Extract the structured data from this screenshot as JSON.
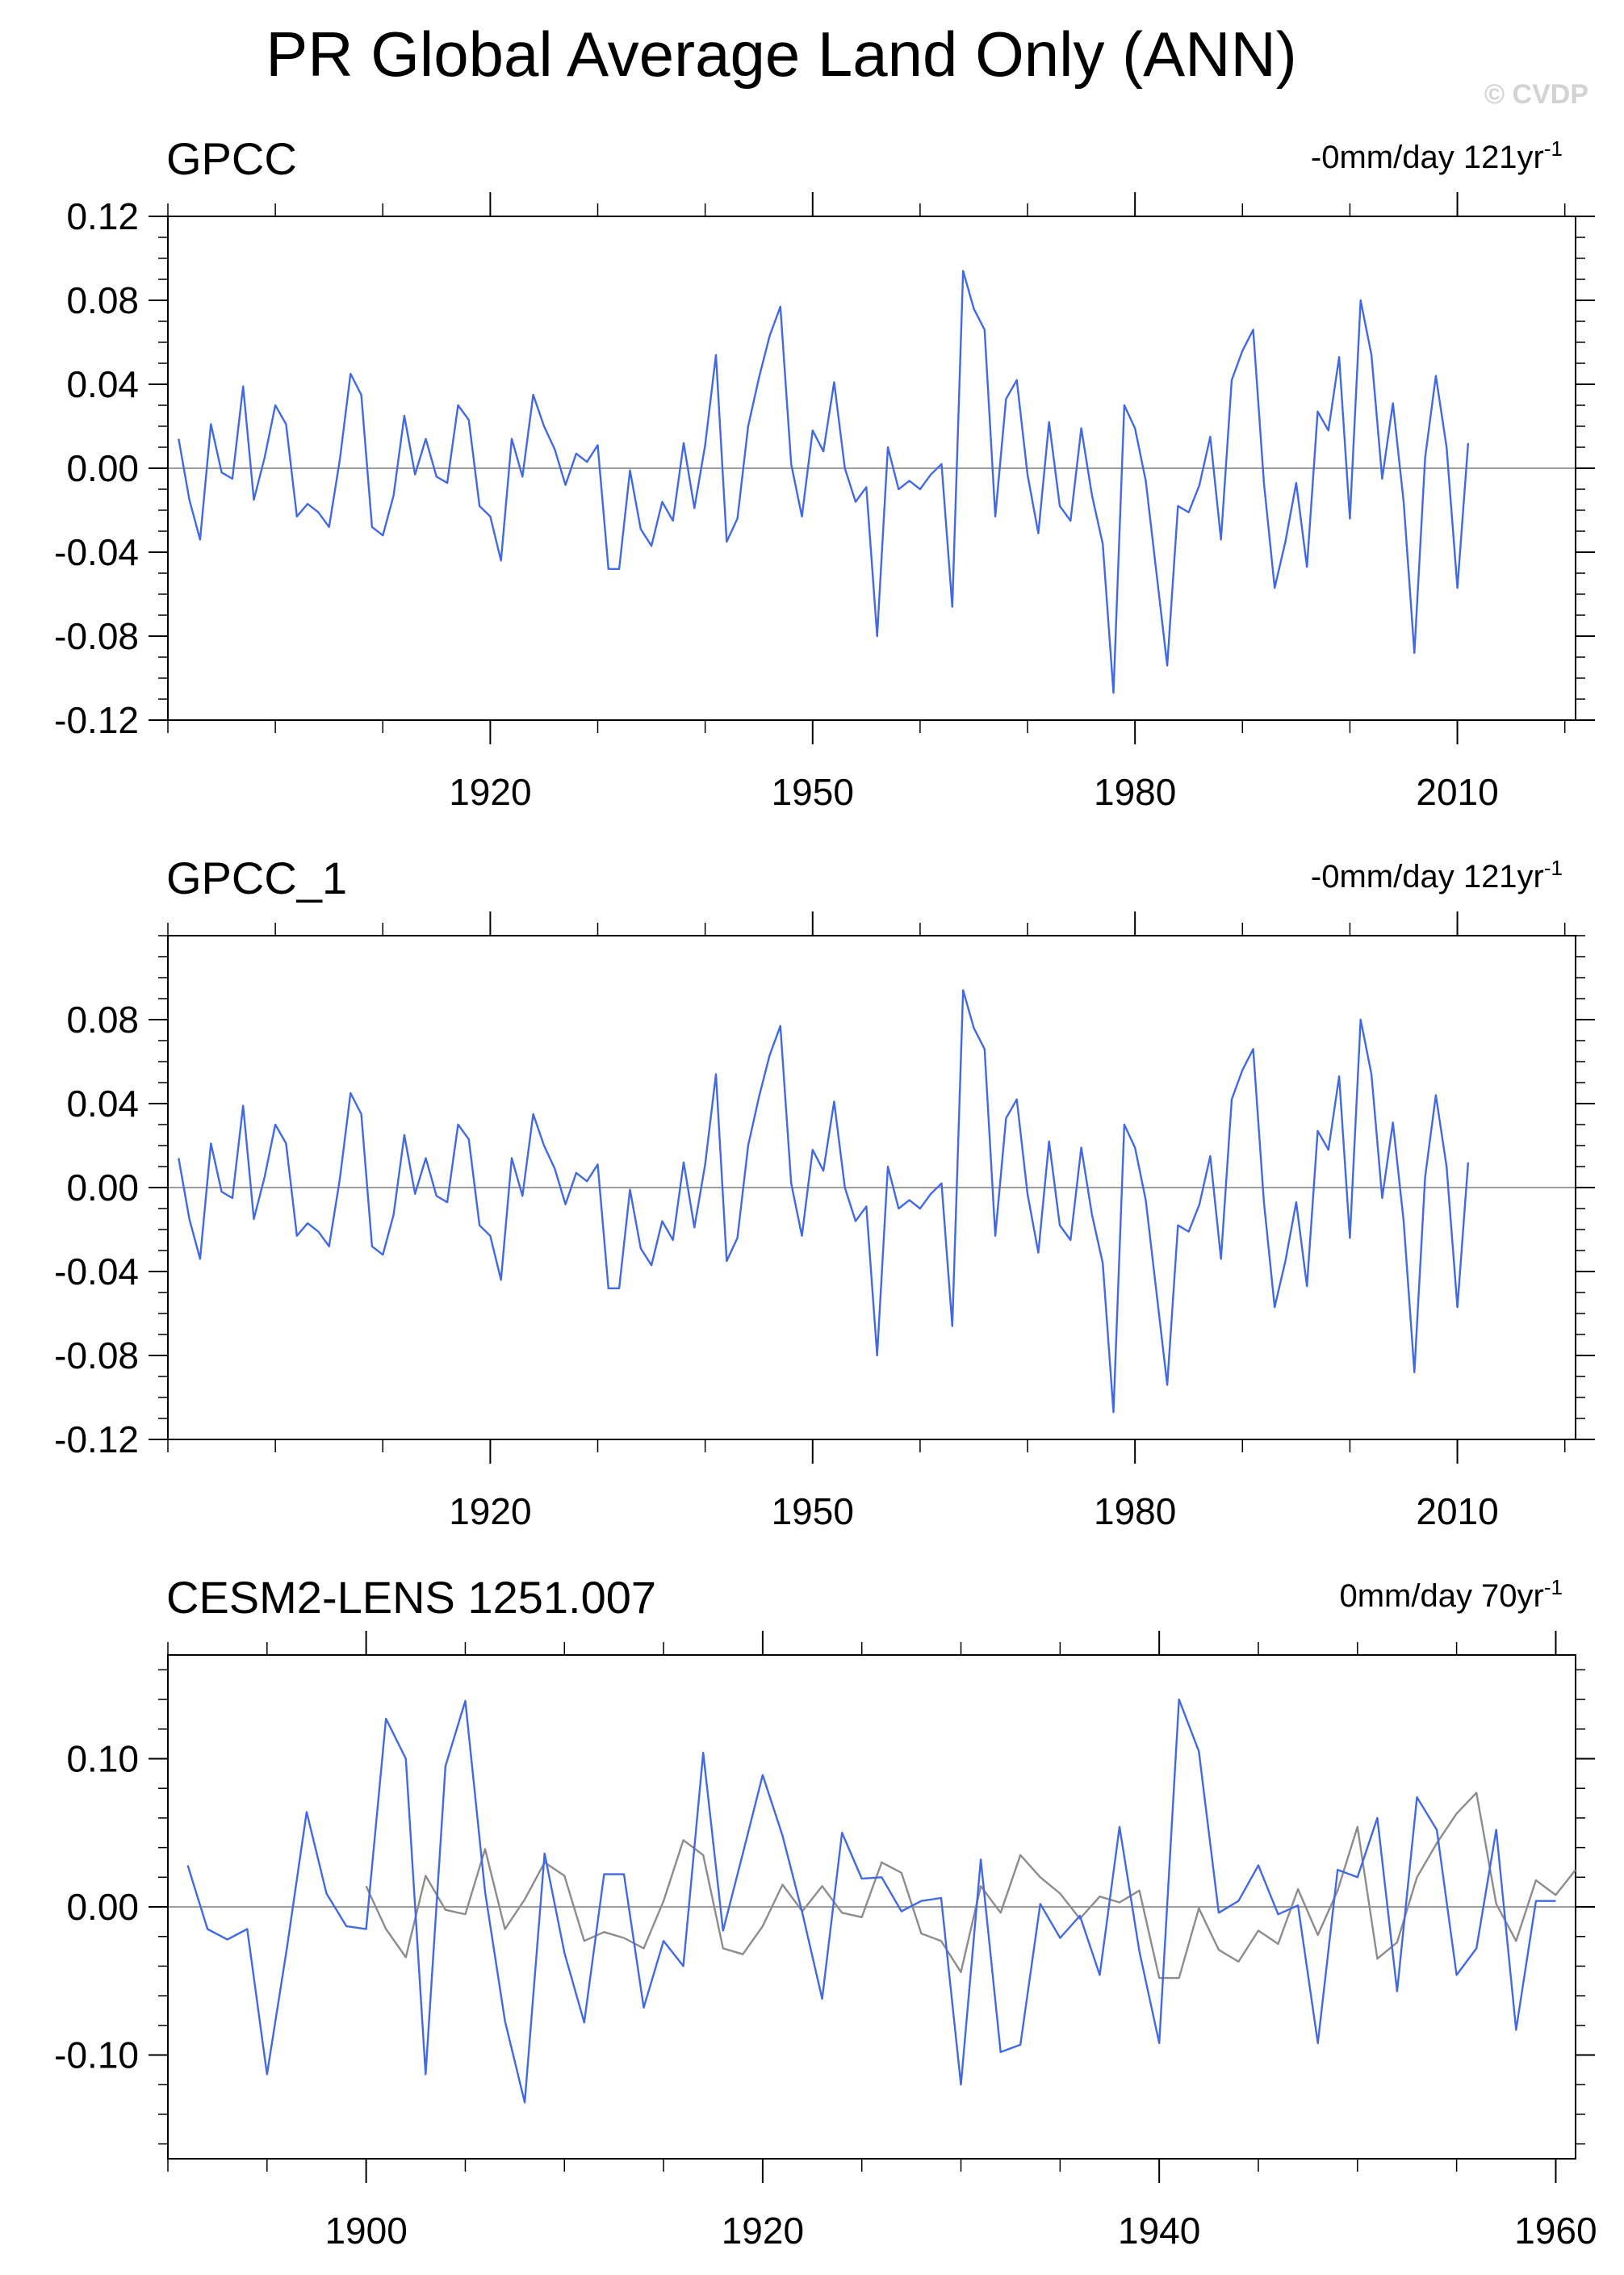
{
  "figure": {
    "title": "PR Global Average Land Only (ANN)",
    "copyright": "© CVDP"
  },
  "colors": {
    "primary": "#4169e1",
    "secondary": "#8c8c8c"
  },
  "chart_data": [
    {
      "type": "line",
      "title": "GPCC",
      "trend_label": "-0mm/day 121yr",
      "trend_sup": "-1",
      "xlim": [
        1890,
        2021
      ],
      "ylim": [
        -0.12,
        0.12
      ],
      "yticks": [
        -0.12,
        -0.08,
        -0.04,
        0.0,
        0.04,
        0.08,
        0.12
      ],
      "ytick_labels": [
        "-0.12",
        "-0.08",
        "-0.04",
        "0.00",
        "0.04",
        "0.08",
        "0.12"
      ],
      "xticks": [
        1920,
        1950,
        1980,
        2010
      ],
      "xtick_labels": [
        "1920",
        "1950",
        "1980",
        "2010"
      ],
      "series": [
        {
          "start": 1891,
          "values": [
            0.014,
            -0.015,
            -0.034,
            0.021,
            -0.002,
            -0.005,
            0.039,
            -0.015,
            0.005,
            0.03,
            0.021,
            -0.023,
            -0.017,
            -0.021,
            -0.028,
            0.004,
            0.045,
            0.035,
            -0.028,
            -0.032,
            -0.013,
            0.025,
            -0.003,
            0.014,
            -0.004,
            -0.007,
            0.03,
            0.023,
            -0.018,
            -0.023,
            -0.044,
            0.014,
            -0.004,
            0.035,
            0.02,
            0.009,
            -0.008,
            0.007,
            0.003,
            0.011,
            -0.048,
            -0.048,
            -0.001,
            -0.029,
            -0.037,
            -0.016,
            -0.025,
            0.012,
            -0.019,
            0.011,
            0.054,
            -0.035,
            -0.024,
            0.02,
            0.043,
            0.063,
            0.077,
            0.002,
            -0.023,
            0.018,
            0.008,
            0.041,
            0.0,
            -0.016,
            -0.009,
            -0.08,
            0.01,
            -0.01,
            -0.006,
            -0.01,
            -0.003,
            0.002,
            -0.066,
            0.094,
            0.076,
            0.066,
            -0.023,
            0.033,
            0.042,
            -0.003,
            -0.031,
            0.022,
            -0.018,
            -0.025,
            0.019,
            -0.013,
            -0.036,
            -0.107,
            0.03,
            0.019,
            -0.006,
            -0.05,
            -0.094,
            -0.018,
            -0.021,
            -0.008,
            0.015,
            -0.034,
            0.042,
            0.056,
            0.066,
            -0.007,
            -0.057,
            -0.035,
            -0.007,
            -0.047,
            0.027,
            0.018,
            0.053,
            -0.024,
            0.08,
            0.054,
            -0.005,
            0.031,
            -0.016,
            -0.088,
            0.005,
            0.044,
            0.01,
            -0.057,
            0.012
          ]
        }
      ]
    },
    {
      "type": "line",
      "title": "GPCC_1",
      "trend_label": "-0mm/day 121yr",
      "trend_sup": "-1",
      "xlim": [
        1890,
        2021
      ],
      "ylim": [
        -0.12,
        0.12
      ],
      "yticks": [
        -0.12,
        -0.08,
        -0.04,
        0.0,
        0.04,
        0.08
      ],
      "ytick_labels": [
        "-0.12",
        "-0.08",
        "-0.04",
        "0.00",
        "0.04",
        "0.08"
      ],
      "xticks": [
        1920,
        1950,
        1980,
        2010
      ],
      "xtick_labels": [
        "1920",
        "1950",
        "1980",
        "2010"
      ],
      "series": [
        {
          "start": 1891,
          "values": [
            0.014,
            -0.015,
            -0.034,
            0.021,
            -0.002,
            -0.005,
            0.039,
            -0.015,
            0.005,
            0.03,
            0.021,
            -0.023,
            -0.017,
            -0.021,
            -0.028,
            0.004,
            0.045,
            0.035,
            -0.028,
            -0.032,
            -0.013,
            0.025,
            -0.003,
            0.014,
            -0.004,
            -0.007,
            0.03,
            0.023,
            -0.018,
            -0.023,
            -0.044,
            0.014,
            -0.004,
            0.035,
            0.02,
            0.009,
            -0.008,
            0.007,
            0.003,
            0.011,
            -0.048,
            -0.048,
            -0.001,
            -0.029,
            -0.037,
            -0.016,
            -0.025,
            0.012,
            -0.019,
            0.011,
            0.054,
            -0.035,
            -0.024,
            0.02,
            0.043,
            0.063,
            0.077,
            0.002,
            -0.023,
            0.018,
            0.008,
            0.041,
            0.0,
            -0.016,
            -0.009,
            -0.08,
            0.01,
            -0.01,
            -0.006,
            -0.01,
            -0.003,
            0.002,
            -0.066,
            0.094,
            0.076,
            0.066,
            -0.023,
            0.033,
            0.042,
            -0.003,
            -0.031,
            0.022,
            -0.018,
            -0.025,
            0.019,
            -0.013,
            -0.036,
            -0.107,
            0.03,
            0.019,
            -0.006,
            -0.05,
            -0.094,
            -0.018,
            -0.021,
            -0.008,
            0.015,
            -0.034,
            0.042,
            0.056,
            0.066,
            -0.007,
            -0.057,
            -0.035,
            -0.007,
            -0.047,
            0.027,
            0.018,
            0.053,
            -0.024,
            0.08,
            0.054,
            -0.005,
            0.031,
            -0.016,
            -0.088,
            0.005,
            0.044,
            0.01,
            -0.057,
            0.012
          ]
        }
      ]
    },
    {
      "type": "line",
      "title": "CESM2-LENS 1251.007",
      "trend_label": "0mm/day 70yr",
      "trend_sup": "-1",
      "xlim": [
        1890,
        1961
      ],
      "ylim": [
        -0.17,
        0.17
      ],
      "yticks": [
        -0.1,
        0.0,
        0.1
      ],
      "ytick_labels": [
        "-0.10",
        "0.00",
        "0.10"
      ],
      "xticks": [
        1900,
        1920,
        1940,
        1960
      ],
      "xtick_labels": [
        "1900",
        "1920",
        "1940",
        "1960"
      ],
      "series": [
        {
          "start": 1891,
          "values": [
            0.028,
            -0.015,
            -0.022,
            -0.015,
            -0.113,
            -0.028,
            0.064,
            0.009,
            -0.013,
            -0.015,
            0.127,
            0.1,
            -0.113,
            0.095,
            0.139,
            0.01,
            -0.077,
            -0.132,
            0.036,
            -0.031,
            -0.078,
            0.022,
            0.022,
            -0.068,
            -0.023,
            -0.04,
            0.104,
            -0.016,
            0.036,
            0.089,
            0.048,
            -0.004,
            -0.062,
            0.05,
            0.019,
            0.02,
            -0.003,
            0.004,
            0.006,
            -0.12,
            0.032,
            -0.098,
            -0.093,
            0.002,
            -0.021,
            -0.006,
            -0.046,
            0.054,
            -0.03,
            -0.092,
            0.14,
            0.105,
            -0.004,
            0.004,
            0.028,
            -0.005,
            0.001,
            -0.092,
            0.025,
            0.02,
            0.06,
            -0.057,
            0.074,
            0.052,
            -0.046,
            -0.028,
            0.052,
            -0.083,
            0.004,
            0.004
          ]
        },
        {
          "start": 1900,
          "values": [
            0.014,
            -0.015,
            -0.034,
            0.021,
            -0.002,
            -0.005,
            0.039,
            -0.015,
            0.005,
            0.03,
            0.021,
            -0.023,
            -0.017,
            -0.021,
            -0.028,
            0.004,
            0.045,
            0.035,
            -0.028,
            -0.032,
            -0.013,
            0.015,
            -0.003,
            0.014,
            -0.004,
            -0.007,
            0.03,
            0.023,
            -0.018,
            -0.023,
            -0.044,
            0.014,
            -0.004,
            0.035,
            0.02,
            0.009,
            -0.008,
            0.007,
            0.003,
            0.011,
            -0.048,
            -0.048,
            -0.001,
            -0.029,
            -0.037,
            -0.016,
            -0.025,
            0.012,
            -0.019,
            0.011,
            0.054,
            -0.035,
            -0.024,
            0.02,
            0.043,
            0.063,
            0.077,
            0.002,
            -0.023,
            0.018,
            0.008,
            0.025
          ]
        }
      ]
    }
  ]
}
